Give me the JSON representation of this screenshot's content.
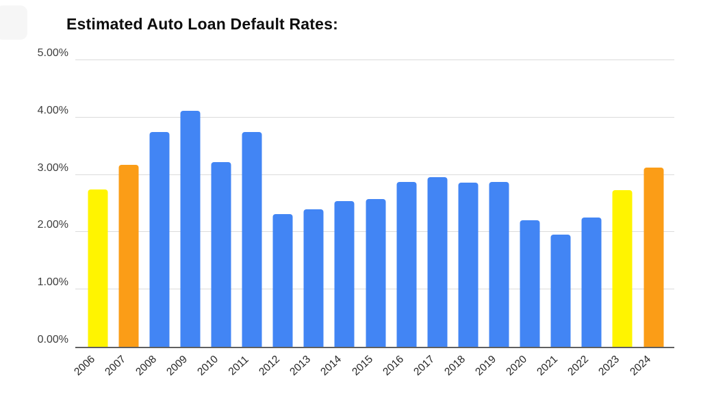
{
  "title": "Estimated Auto Loan Default Rates:",
  "colors": {
    "blue": "#4285F4",
    "yellow": "#FFF400",
    "orange": "#FB9D17",
    "gridline": "#DBDBDB",
    "axis_line": "#5F5F5F",
    "tick_text": "#3D3D3D",
    "title_text": "#0D0D0D",
    "background": "#FFFFFF"
  },
  "chart_data": {
    "type": "bar",
    "title": "Estimated Auto Loan Default Rates:",
    "categories": [
      "2006",
      "2007",
      "2008",
      "2009",
      "2010",
      "2011",
      "2012",
      "2013",
      "2014",
      "2015",
      "2016",
      "2017",
      "2018",
      "2019",
      "2020",
      "2021",
      "2022",
      "2023",
      "2024"
    ],
    "values": [
      2.75,
      3.18,
      3.75,
      4.12,
      3.22,
      3.75,
      2.32,
      2.4,
      2.54,
      2.58,
      2.88,
      2.96,
      2.86,
      2.88,
      2.21,
      1.96,
      2.26,
      2.73,
      3.13
    ],
    "bar_color_names": [
      "yellow",
      "orange",
      "blue",
      "blue",
      "blue",
      "blue",
      "blue",
      "blue",
      "blue",
      "blue",
      "blue",
      "blue",
      "blue",
      "blue",
      "blue",
      "blue",
      "blue",
      "yellow",
      "orange"
    ],
    "unit": "%",
    "xlabel": "",
    "ylabel": "",
    "ylim": [
      0,
      5
    ],
    "ytick_labels": [
      "0.00%",
      "1.00%",
      "2.00%",
      "3.00%",
      "4.00%",
      "5.00%"
    ],
    "grid": true,
    "legend_position": "none"
  }
}
